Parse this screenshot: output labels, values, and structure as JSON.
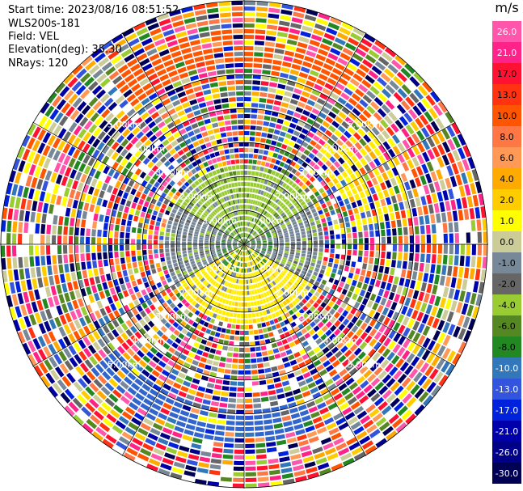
{
  "header": {
    "start_time": "Start time: 2023/08/16 08:51:52",
    "instrument": "WLS200s-181",
    "field": "Field: VEL",
    "elevation": "Elevation(deg): 35.30",
    "nrays": "NRays: 120"
  },
  "chart_data": {
    "type": "heatmap",
    "projection": "polar (PPI)",
    "field": "VEL",
    "unit": "m/s",
    "range_ring_labels": [
      "1.00km",
      "2.00km",
      "3.00km",
      "4.00km",
      "5.00km"
    ],
    "range_rings_km": [
      1,
      2,
      3,
      4,
      5
    ],
    "max_range_km": 7.2,
    "nrays": 120,
    "azimuth_lines_deg": [
      0,
      30,
      60,
      90,
      120,
      150,
      180,
      210,
      240,
      270,
      300,
      330
    ],
    "colorbar": {
      "ticks": [
        "26.0",
        "21.0",
        "17.0",
        "13.0",
        "10.0",
        "8.0",
        "6.0",
        "4.0",
        "2.0",
        "1.0",
        "0.0",
        "-1.0",
        "-2.0",
        "-4.0",
        "-6.0",
        "-8.0",
        "-10.0",
        "-13.0",
        "-17.0",
        "-21.0",
        "-26.0",
        "-30.0"
      ],
      "colors": [
        "#ff55aa",
        "#ff2288",
        "#ff1133",
        "#ff3311",
        "#ff5500",
        "#ff7744",
        "#ff9955",
        "#ffaa00",
        "#ffcc00",
        "#ffff00",
        "#cccc99",
        "#778899",
        "#666666",
        "#99cc33",
        "#558822",
        "#228822",
        "#3377bb",
        "#3355dd",
        "#0022dd",
        "#0000aa",
        "#000088",
        "#000055"
      ]
    },
    "pattern": {
      "inner_km": 2.4,
      "north_inner": "#99cc33",
      "south_inner": "#ffee00",
      "east_west_inner": "#778899"
    }
  }
}
